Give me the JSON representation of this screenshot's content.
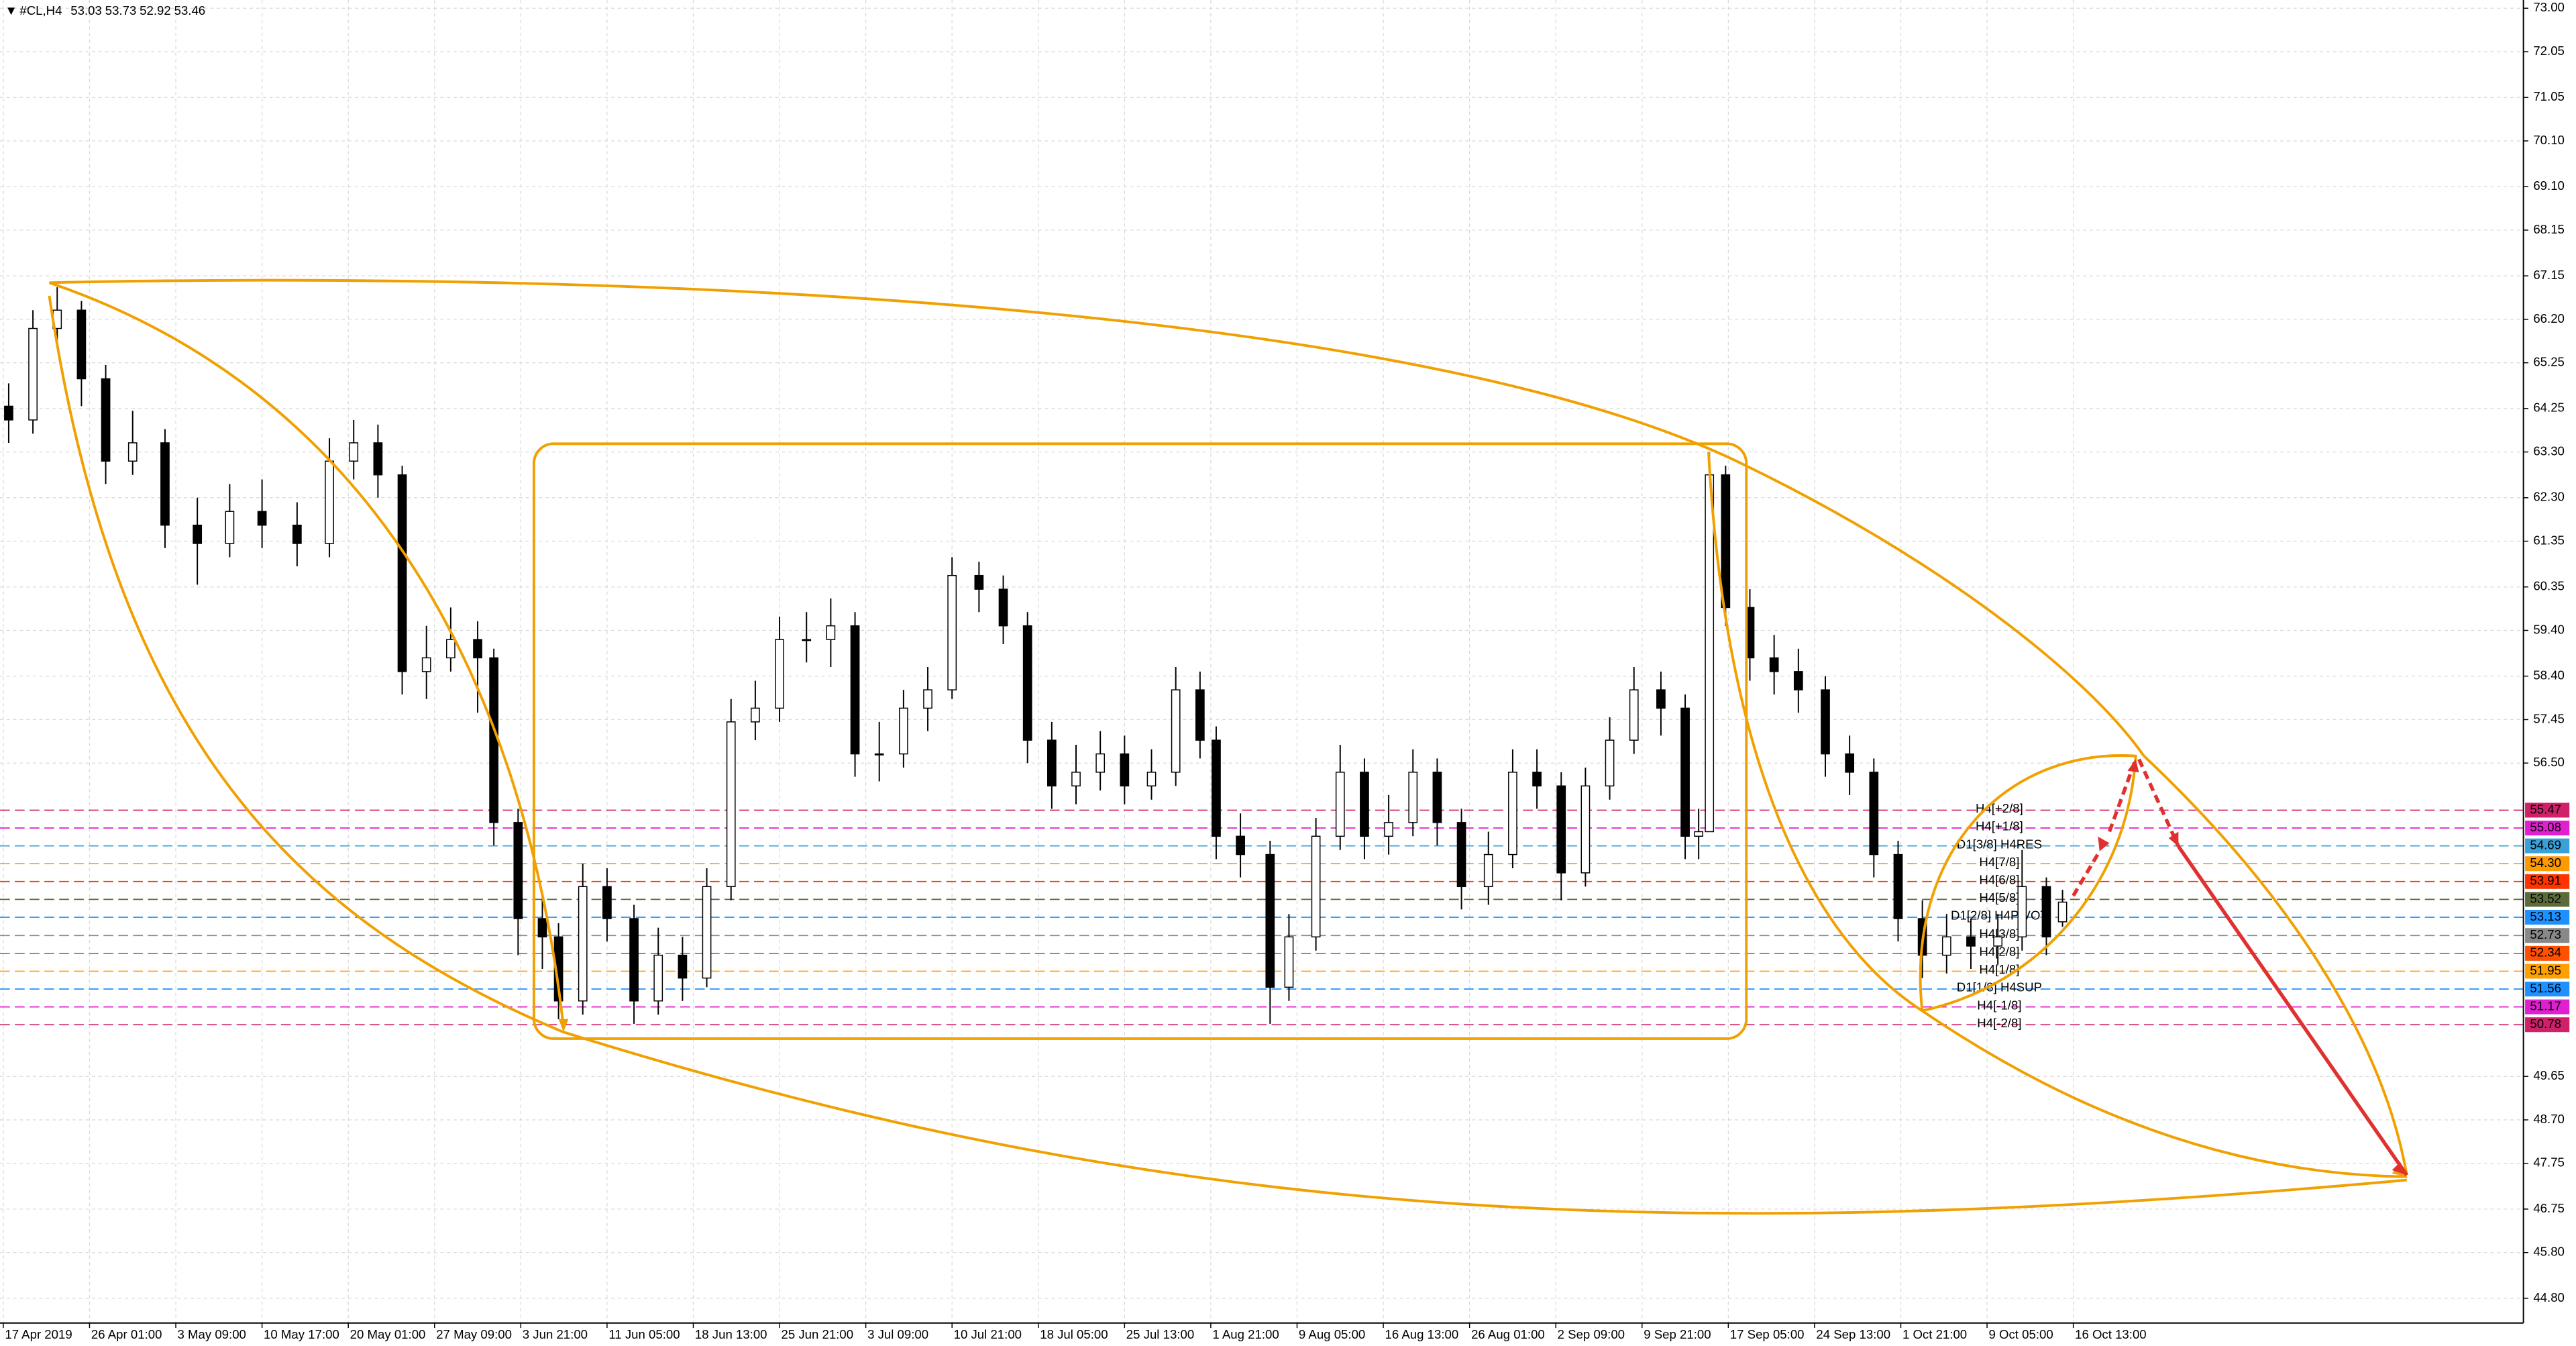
{
  "chart_data": {
    "type": "candlestick",
    "title": "#CL,H4",
    "x": [
      2,
      11,
      20,
      29,
      38,
      48,
      60,
      72,
      84,
      96,
      109,
      121,
      130,
      139,
      148,
      157,
      166,
      176,
      182,
      191,
      200,
      206,
      215,
      224,
      234,
      243,
      252,
      261,
      270,
      279,
      288,
      298,
      307,
      316,
      325,
      334,
      343,
      352,
      362,
      371,
      380,
      389,
      398,
      407,
      416,
      426,
      435,
      444,
      450,
      459,
      470,
      477,
      487,
      496,
      505,
      514,
      523,
      532,
      541,
      551,
      560,
      569,
      578,
      587,
      596,
      605,
      615,
      624,
      629,
      633,
      639,
      648,
      657,
      666,
      676,
      685,
      694,
      703,
      712,
      721,
      730,
      740,
      749,
      758,
      764
    ],
    "open": [
      64.3,
      64.0,
      66.0,
      66.4,
      64.9,
      63.1,
      63.5,
      61.7,
      61.3,
      62.0,
      61.7,
      61.3,
      63.1,
      63.5,
      62.8,
      58.5,
      58.8,
      59.2,
      58.8,
      55.2,
      53.1,
      52.7,
      51.3,
      53.8,
      53.1,
      51.3,
      52.3,
      51.8,
      53.8,
      57.4,
      57.7,
      59.2,
      59.2,
      59.5,
      56.7,
      56.7,
      57.7,
      58.1,
      60.6,
      60.3,
      59.5,
      57.0,
      56.0,
      56.3,
      56.7,
      56.0,
      56.3,
      58.1,
      57.0,
      54.9,
      54.5,
      51.6,
      52.7,
      54.9,
      56.3,
      54.9,
      55.2,
      56.3,
      55.2,
      53.8,
      54.5,
      56.3,
      56.0,
      54.1,
      56.0,
      57.0,
      58.1,
      57.7,
      54.9,
      55.0,
      62.8,
      59.9,
      58.8,
      58.5,
      58.1,
      56.7,
      56.3,
      54.5,
      53.1,
      52.3,
      52.7,
      52.5,
      52.7,
      53.8,
      53.03
    ],
    "high": [
      64.8,
      66.4,
      66.9,
      66.6,
      65.2,
      64.2,
      63.8,
      62.3,
      62.6,
      62.7,
      62.2,
      63.6,
      64.0,
      63.9,
      63.0,
      59.5,
      59.9,
      59.6,
      59.0,
      55.5,
      53.6,
      53.0,
      54.3,
      54.2,
      53.4,
      52.9,
      52.7,
      54.2,
      57.9,
      58.3,
      59.7,
      59.8,
      60.1,
      59.8,
      57.4,
      58.1,
      58.6,
      61.0,
      60.9,
      60.6,
      59.8,
      57.4,
      56.9,
      57.2,
      57.1,
      56.8,
      58.6,
      58.5,
      57.3,
      55.4,
      54.8,
      53.2,
      55.3,
      56.9,
      56.6,
      55.8,
      56.8,
      56.6,
      55.5,
      55.0,
      56.8,
      56.8,
      56.3,
      56.4,
      57.5,
      58.6,
      58.5,
      58.0,
      55.5,
      63.3,
      63.0,
      60.3,
      59.3,
      59.0,
      58.4,
      57.1,
      56.6,
      54.8,
      53.5,
      53.2,
      53.1,
      53.2,
      54.6,
      54.0,
      53.73
    ],
    "low": [
      63.5,
      63.7,
      65.6,
      64.3,
      62.6,
      62.8,
      61.2,
      60.4,
      61.0,
      61.2,
      60.8,
      61.0,
      62.7,
      62.3,
      58.0,
      57.9,
      58.5,
      57.6,
      54.7,
      52.3,
      52.0,
      50.9,
      51.0,
      52.6,
      50.8,
      51.0,
      51.3,
      51.6,
      53.5,
      57.0,
      57.4,
      58.7,
      58.6,
      56.2,
      56.1,
      56.4,
      57.2,
      57.9,
      59.8,
      59.1,
      56.5,
      55.5,
      55.6,
      55.9,
      55.6,
      55.7,
      56.0,
      56.6,
      54.4,
      54.0,
      50.8,
      51.3,
      52.4,
      54.6,
      54.4,
      54.5,
      54.9,
      54.7,
      53.3,
      53.4,
      54.2,
      55.5,
      53.5,
      53.8,
      55.7,
      56.7,
      57.1,
      54.4,
      54.4,
      55.0,
      59.5,
      58.3,
      58.0,
      57.6,
      56.2,
      55.8,
      54.0,
      52.6,
      51.8,
      51.9,
      52.0,
      52.1,
      52.4,
      52.3,
      52.92
    ],
    "close": [
      64.0,
      66.0,
      66.4,
      64.9,
      63.1,
      63.5,
      61.7,
      61.3,
      62.0,
      61.7,
      61.3,
      63.1,
      63.5,
      62.8,
      58.5,
      58.8,
      59.2,
      58.8,
      55.2,
      53.1,
      52.7,
      51.3,
      53.8,
      53.1,
      51.3,
      52.3,
      51.8,
      53.8,
      57.4,
      57.7,
      59.2,
      59.2,
      59.5,
      56.7,
      56.7,
      57.7,
      58.1,
      60.6,
      60.3,
      59.5,
      57.0,
      56.0,
      56.3,
      56.7,
      56.0,
      56.3,
      58.1,
      57.0,
      54.9,
      54.5,
      51.6,
      52.7,
      54.9,
      56.3,
      54.9,
      55.2,
      56.3,
      55.2,
      53.8,
      54.5,
      56.3,
      56.0,
      54.1,
      56.0,
      57.0,
      58.1,
      57.7,
      54.9,
      55.0,
      62.8,
      59.9,
      58.8,
      58.5,
      58.1,
      56.7,
      56.3,
      54.5,
      53.1,
      52.3,
      52.7,
      52.5,
      52.7,
      53.8,
      52.7,
      53.46
    ],
    "xlim": [
      0,
      935
    ],
    "ylim": [
      44.26,
      73.18
    ],
    "xticks": [
      {
        "value": 0,
        "label": "17 Apr 2019"
      },
      {
        "value": 32,
        "label": "26 Apr 01:00"
      },
      {
        "value": 64,
        "label": "3 May 09:00"
      },
      {
        "value": 96,
        "label": "10 May 17:00"
      },
      {
        "value": 128,
        "label": "20 May 01:00"
      },
      {
        "value": 160,
        "label": "27 May 09:00"
      },
      {
        "value": 192,
        "label": "3 Jun 21:00"
      },
      {
        "value": 224,
        "label": "11 Jun 05:00"
      },
      {
        "value": 256,
        "label": "18 Jun 13:00"
      },
      {
        "value": 288,
        "label": "25 Jun 21:00"
      },
      {
        "value": 320,
        "label": "3 Jul 09:00"
      },
      {
        "value": 352,
        "label": "10 Jul 21:00"
      },
      {
        "value": 384,
        "label": "18 Jul 05:00"
      },
      {
        "value": 416,
        "label": "25 Jul 13:00"
      },
      {
        "value": 448,
        "label": "1 Aug 21:00"
      },
      {
        "value": 480,
        "label": "9 Aug 05:00"
      },
      {
        "value": 512,
        "label": "16 Aug 13:00"
      },
      {
        "value": 544,
        "label": "26 Aug 01:00"
      },
      {
        "value": 576,
        "label": "2 Sep 09:00"
      },
      {
        "value": 608,
        "label": "9 Sep 21:00"
      },
      {
        "value": 640,
        "label": "17 Sep 05:00"
      },
      {
        "value": 672,
        "label": "24 Sep 13:00"
      },
      {
        "value": 704,
        "label": "1 Oct 21:00"
      },
      {
        "value": 736,
        "label": "9 Oct 05:00"
      },
      {
        "value": 768,
        "label": "16 Oct 13:00"
      }
    ],
    "yticks": [
      {
        "value": 73,
        "label": "73.00"
      },
      72.05,
      71.05,
      {
        "value": 70.1,
        "label": "70.10"
      },
      {
        "value": 69.1,
        "label": "69.10"
      },
      68.15,
      67.15,
      {
        "value": 66.2,
        "label": "66.20"
      },
      65.25,
      64.25,
      {
        "value": 63.3,
        "label": "63.30"
      },
      {
        "value": 62.3,
        "label": "62.30"
      },
      61.35,
      60.35,
      {
        "value": 59.4,
        "label": "59.40"
      },
      {
        "value": 58.4,
        "label": "58.40"
      },
      57.45,
      {
        "value": 56.5,
        "label": "56.50"
      },
      49.65,
      {
        "value": 48.7,
        "label": "48.70"
      },
      47.75,
      46.75,
      {
        "value": 45.8,
        "label": "45.80"
      },
      {
        "value": 44.8,
        "label": "44.80"
      }
    ],
    "grid": true,
    "up_color": "#ffffff",
    "down_color": "#000000",
    "levels": [
      {
        "value": 55.47,
        "label": "H4[+2/8]",
        "color": "#d0206a"
      },
      {
        "value": 55.08,
        "label": "H4[+1/8]",
        "color": "#e020d0"
      },
      {
        "value": 54.69,
        "label": "D1[3/8] H4RES",
        "color": "#3aa0d8"
      },
      {
        "value": 54.3,
        "value_label": "54.30",
        "label": "H4[7/8]",
        "color": "#ff9900"
      },
      {
        "value": 53.91,
        "label": "H4[6/8]",
        "color": "#ff3300"
      },
      {
        "value": 53.52,
        "label": "H4[5/8]",
        "color": "#5a6a3a"
      },
      {
        "value": 53.13,
        "label": "D1[2/8] H4PIVOT",
        "color": "#1e90ff"
      },
      {
        "value": 52.73,
        "label": "H4[3/8]",
        "color": "#888888"
      },
      {
        "value": 52.34,
        "label": "H4[2/8]",
        "color": "#ff5000"
      },
      {
        "value": 51.95,
        "label": "H4[1/8]",
        "color": "#ffa000"
      },
      {
        "value": 51.56,
        "label": "D1[1/8] H4SUP",
        "color": "#1e90ff"
      },
      {
        "value": 51.17,
        "label": "H4[-1/8]",
        "color": "#e020d0"
      },
      {
        "value": 50.78,
        "label": "H4[-2/8]",
        "color": "#d0206a"
      }
    ]
  }
}
